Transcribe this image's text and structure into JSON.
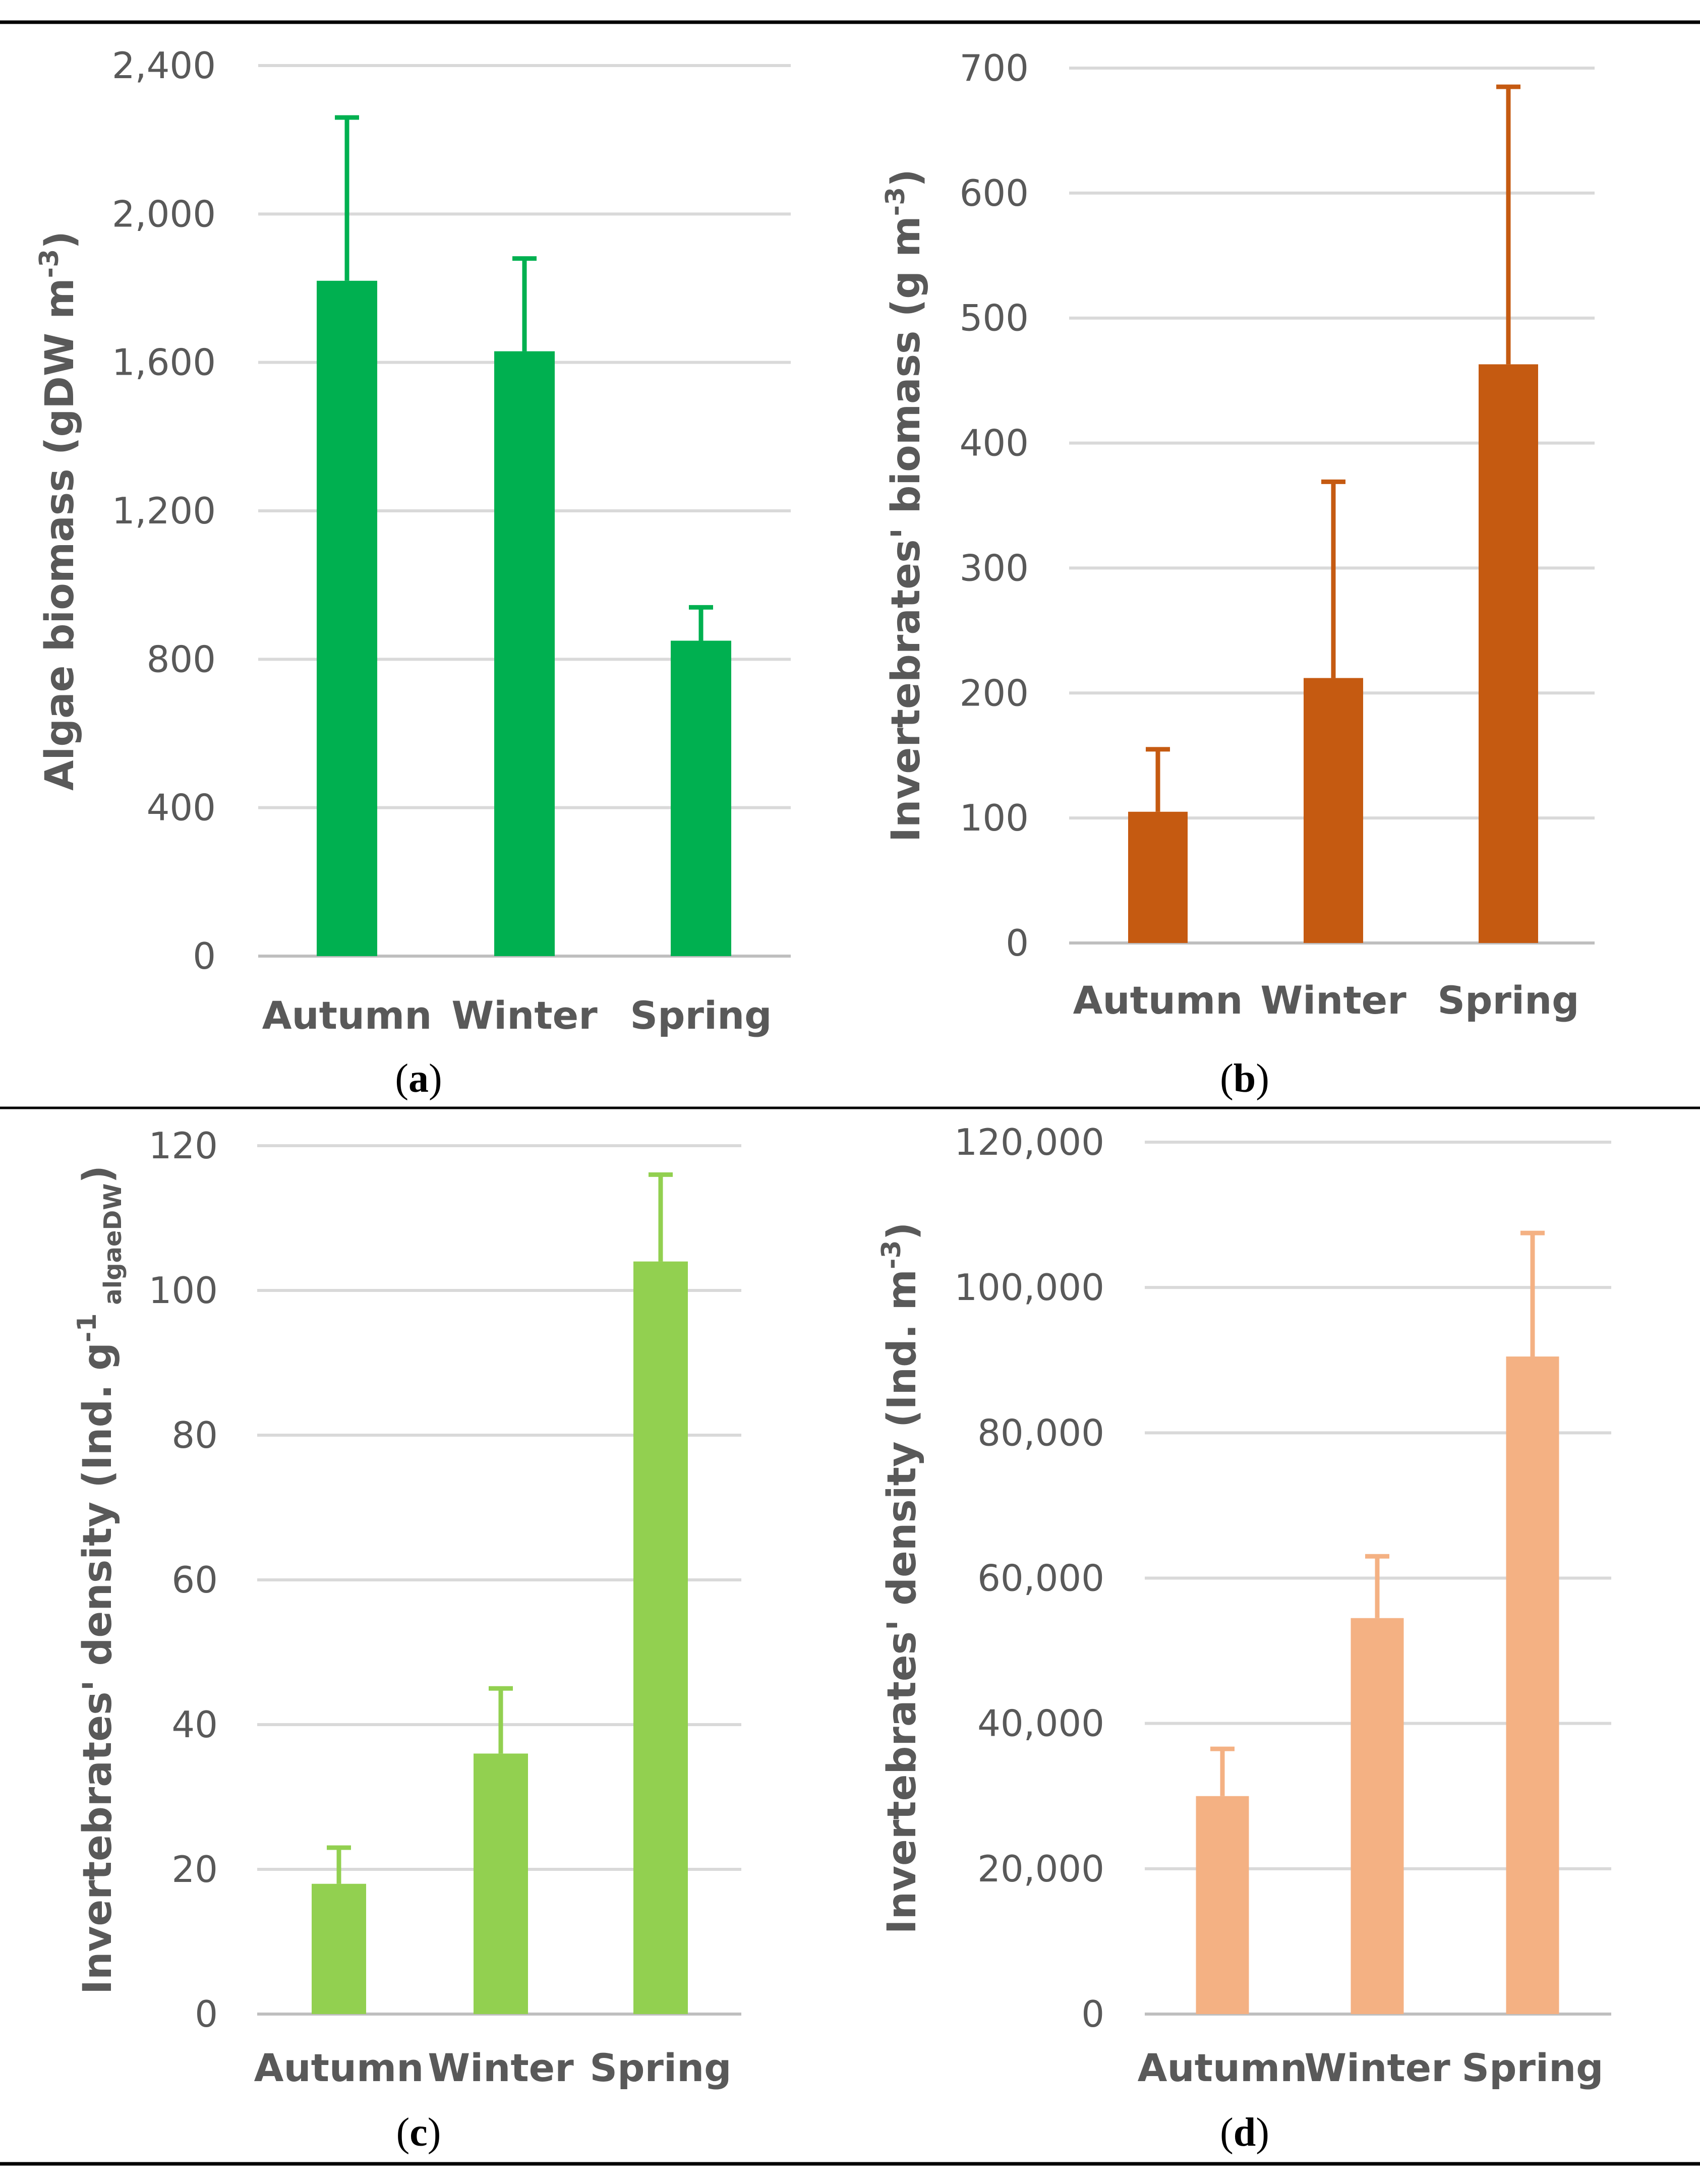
{
  "chart_data": [
    {
      "type": "bar",
      "panel": "a",
      "categories": [
        "Autumn",
        "Winter",
        "Spring"
      ],
      "values": [
        1820,
        1630,
        850
      ],
      "error_upper": [
        440,
        250,
        90
      ],
      "ylabel_main": "Algae biomass (gDW m",
      "ylabel_sup": "-3",
      "ylabel_end": ")",
      "ylim": [
        0,
        2400
      ],
      "yticks": [
        0,
        400,
        800,
        1200,
        1600,
        2000,
        2400
      ],
      "ytick_labels": [
        "0",
        "400",
        "800",
        "1,200",
        "1,600",
        "2,000",
        "2,400"
      ],
      "color": "#00b050",
      "grid": true
    },
    {
      "type": "bar",
      "panel": "b",
      "categories": [
        "Autumn",
        "Winter",
        "Spring"
      ],
      "values": [
        105,
        212,
        463
      ],
      "error_upper": [
        50,
        157,
        222
      ],
      "ylabel_main": "Invertebrates' biomass (g m",
      "ylabel_sup": "-3",
      "ylabel_end": ")",
      "ylim": [
        0,
        700
      ],
      "yticks": [
        0,
        100,
        200,
        300,
        400,
        500,
        600,
        700
      ],
      "ytick_labels": [
        "0",
        "100",
        "200",
        "300",
        "400",
        "500",
        "600",
        "700"
      ],
      "color": "#c55a11",
      "grid": true
    },
    {
      "type": "bar",
      "panel": "c",
      "categories": [
        "Autumn",
        "Winter",
        "Spring"
      ],
      "values": [
        18,
        36,
        104
      ],
      "error_upper": [
        5,
        9,
        12
      ],
      "ylabel_main": "Invertebrates' density (Ind. g",
      "ylabel_sup": "-1",
      "ylabel_sub": "algaeDW",
      "ylabel_end": ")",
      "ylim": [
        0,
        120
      ],
      "yticks": [
        0,
        20,
        40,
        60,
        80,
        100,
        120
      ],
      "ytick_labels": [
        "0",
        "20",
        "40",
        "60",
        "80",
        "100",
        "120"
      ],
      "color": "#92d050",
      "grid": true
    },
    {
      "type": "bar",
      "panel": "d",
      "categories": [
        "Autumn",
        "Winter",
        "Spring"
      ],
      "values": [
        30000,
        54500,
        90500
      ],
      "error_upper": [
        6500,
        8500,
        17000
      ],
      "ylabel_main": "Invertebrates' density (Ind. m",
      "ylabel_sup": "-3",
      "ylabel_end": ")",
      "ylim": [
        0,
        120000
      ],
      "yticks": [
        0,
        20000,
        40000,
        60000,
        80000,
        100000,
        120000
      ],
      "ytick_labels": [
        "0",
        "20,000",
        "40,000",
        "60,000",
        "80,000",
        "100,000",
        "120,000"
      ],
      "color": "#f4b183",
      "grid": true
    }
  ],
  "panel_captions": [
    {
      "open": "(",
      "letter": "a",
      "close": ")"
    },
    {
      "open": "(",
      "letter": "b",
      "close": ")"
    },
    {
      "open": "(",
      "letter": "c",
      "close": ")"
    },
    {
      "open": "(",
      "letter": "d",
      "close": ")"
    }
  ]
}
